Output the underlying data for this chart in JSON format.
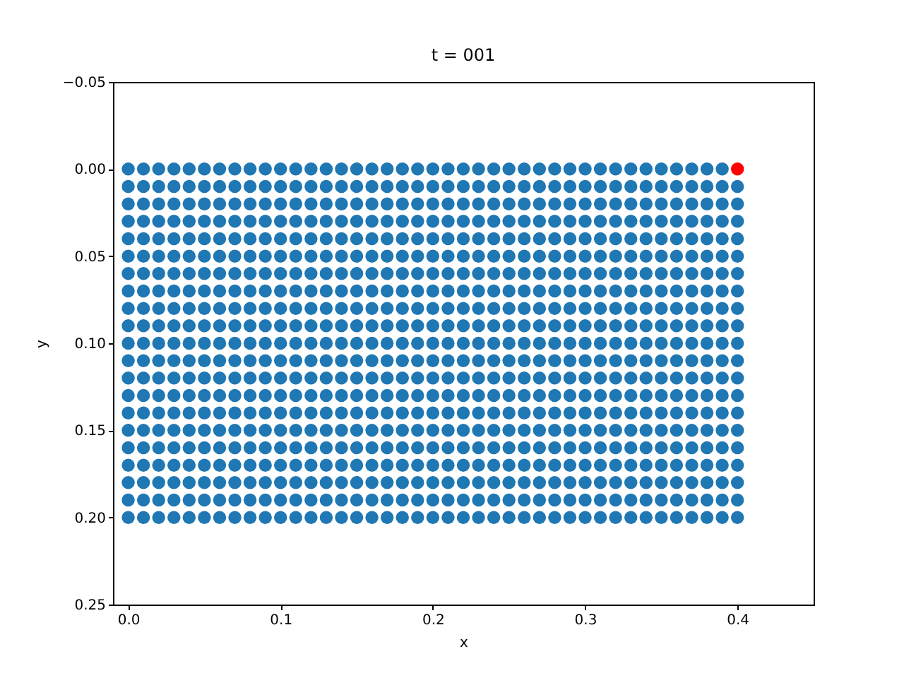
{
  "chart_data": {
    "type": "scatter",
    "title": "t = 001",
    "xlabel": "x",
    "ylabel": "y",
    "marker": "circle",
    "xlim": [
      -0.01,
      0.45
    ],
    "ylim": [
      0.25,
      -0.05
    ],
    "xticks": [
      {
        "value": 0,
        "label": "0.0"
      },
      {
        "value": 0.1,
        "label": "0.1"
      },
      {
        "value": 0.2,
        "label": "0.2"
      },
      {
        "value": 0.3,
        "label": "0.3"
      },
      {
        "value": 0.4,
        "label": "0.4"
      }
    ],
    "yticks": [
      {
        "value": -0.05,
        "label": "−0.05"
      },
      {
        "value": 0,
        "label": "0.00"
      },
      {
        "value": 0.05,
        "label": "0.05"
      },
      {
        "value": 0.1,
        "label": "0.10"
      },
      {
        "value": 0.15,
        "label": "0.15"
      },
      {
        "value": 0.2,
        "label": "0.20"
      },
      {
        "value": 0.25,
        "label": "0.25"
      }
    ],
    "series": [
      {
        "color": "#1f77b4",
        "x": [
          0,
          0.01,
          0.02,
          0.03,
          0.04,
          0.05,
          0.06,
          0.07,
          0.08,
          0.09,
          0.1,
          0.11,
          0.12,
          0.13,
          0.14,
          0.15,
          0.16,
          0.17,
          0.18,
          0.19,
          0.2,
          0.21,
          0.22,
          0.23,
          0.24,
          0.25,
          0.26,
          0.27,
          0.28,
          0.29,
          0.3,
          0.31,
          0.32,
          0.33,
          0.34,
          0.35,
          0.36,
          0.37,
          0.38,
          0.39
        ],
        "values": [
          0,
          0,
          0,
          0,
          0,
          0,
          0,
          0,
          0,
          0,
          0,
          0,
          0,
          0,
          0,
          0,
          0,
          0,
          0,
          0,
          0,
          0,
          0,
          0,
          0,
          0,
          0,
          0,
          0,
          0,
          0,
          0,
          0,
          0,
          0,
          0,
          0,
          0,
          0,
          0
        ]
      },
      {
        "color": "#1f77b4",
        "x": [
          0,
          0.01,
          0.02,
          0.03,
          0.04,
          0.05,
          0.06,
          0.07,
          0.08,
          0.09,
          0.1,
          0.11,
          0.12,
          0.13,
          0.14,
          0.15,
          0.16,
          0.17,
          0.18,
          0.19,
          0.2,
          0.21,
          0.22,
          0.23,
          0.24,
          0.25,
          0.26,
          0.27,
          0.28,
          0.29,
          0.3,
          0.31,
          0.32,
          0.33,
          0.34,
          0.35,
          0.36,
          0.37,
          0.38,
          0.39,
          0.4
        ],
        "values": [
          0.01,
          0.01,
          0.01,
          0.01,
          0.01,
          0.01,
          0.01,
          0.01,
          0.01,
          0.01,
          0.01,
          0.01,
          0.01,
          0.01,
          0.01,
          0.01,
          0.01,
          0.01,
          0.01,
          0.01,
          0.01,
          0.01,
          0.01,
          0.01,
          0.01,
          0.01,
          0.01,
          0.01,
          0.01,
          0.01,
          0.01,
          0.01,
          0.01,
          0.01,
          0.01,
          0.01,
          0.01,
          0.01,
          0.01,
          0.01,
          0.01
        ]
      },
      {
        "color": "#1f77b4",
        "x": [
          0,
          0.01,
          0.02,
          0.03,
          0.04,
          0.05,
          0.06,
          0.07,
          0.08,
          0.09,
          0.1,
          0.11,
          0.12,
          0.13,
          0.14,
          0.15,
          0.16,
          0.17,
          0.18,
          0.19,
          0.2,
          0.21,
          0.22,
          0.23,
          0.24,
          0.25,
          0.26,
          0.27,
          0.28,
          0.29,
          0.3,
          0.31,
          0.32,
          0.33,
          0.34,
          0.35,
          0.36,
          0.37,
          0.38,
          0.39,
          0.4
        ],
        "values": [
          0.02,
          0.02,
          0.02,
          0.02,
          0.02,
          0.02,
          0.02,
          0.02,
          0.02,
          0.02,
          0.02,
          0.02,
          0.02,
          0.02,
          0.02,
          0.02,
          0.02,
          0.02,
          0.02,
          0.02,
          0.02,
          0.02,
          0.02,
          0.02,
          0.02,
          0.02,
          0.02,
          0.02,
          0.02,
          0.02,
          0.02,
          0.02,
          0.02,
          0.02,
          0.02,
          0.02,
          0.02,
          0.02,
          0.02,
          0.02,
          0.02
        ]
      },
      {
        "color": "#1f77b4",
        "x": [
          0,
          0.01,
          0.02,
          0.03,
          0.04,
          0.05,
          0.06,
          0.07,
          0.08,
          0.09,
          0.1,
          0.11,
          0.12,
          0.13,
          0.14,
          0.15,
          0.16,
          0.17,
          0.18,
          0.19,
          0.2,
          0.21,
          0.22,
          0.23,
          0.24,
          0.25,
          0.26,
          0.27,
          0.28,
          0.29,
          0.3,
          0.31,
          0.32,
          0.33,
          0.34,
          0.35,
          0.36,
          0.37,
          0.38,
          0.39,
          0.4
        ],
        "values": [
          0.03,
          0.03,
          0.03,
          0.03,
          0.03,
          0.03,
          0.03,
          0.03,
          0.03,
          0.03,
          0.03,
          0.03,
          0.03,
          0.03,
          0.03,
          0.03,
          0.03,
          0.03,
          0.03,
          0.03,
          0.03,
          0.03,
          0.03,
          0.03,
          0.03,
          0.03,
          0.03,
          0.03,
          0.03,
          0.03,
          0.03,
          0.03,
          0.03,
          0.03,
          0.03,
          0.03,
          0.03,
          0.03,
          0.03,
          0.03,
          0.03
        ]
      },
      {
        "color": "#1f77b4",
        "x": [
          0,
          0.01,
          0.02,
          0.03,
          0.04,
          0.05,
          0.06,
          0.07,
          0.08,
          0.09,
          0.1,
          0.11,
          0.12,
          0.13,
          0.14,
          0.15,
          0.16,
          0.17,
          0.18,
          0.19,
          0.2,
          0.21,
          0.22,
          0.23,
          0.24,
          0.25,
          0.26,
          0.27,
          0.28,
          0.29,
          0.3,
          0.31,
          0.32,
          0.33,
          0.34,
          0.35,
          0.36,
          0.37,
          0.38,
          0.39,
          0.4
        ],
        "values": [
          0.04,
          0.04,
          0.04,
          0.04,
          0.04,
          0.04,
          0.04,
          0.04,
          0.04,
          0.04,
          0.04,
          0.04,
          0.04,
          0.04,
          0.04,
          0.04,
          0.04,
          0.04,
          0.04,
          0.04,
          0.04,
          0.04,
          0.04,
          0.04,
          0.04,
          0.04,
          0.04,
          0.04,
          0.04,
          0.04,
          0.04,
          0.04,
          0.04,
          0.04,
          0.04,
          0.04,
          0.04,
          0.04,
          0.04,
          0.04,
          0.04
        ]
      },
      {
        "color": "#1f77b4",
        "x": [
          0,
          0.01,
          0.02,
          0.03,
          0.04,
          0.05,
          0.06,
          0.07,
          0.08,
          0.09,
          0.1,
          0.11,
          0.12,
          0.13,
          0.14,
          0.15,
          0.16,
          0.17,
          0.18,
          0.19,
          0.2,
          0.21,
          0.22,
          0.23,
          0.24,
          0.25,
          0.26,
          0.27,
          0.28,
          0.29,
          0.3,
          0.31,
          0.32,
          0.33,
          0.34,
          0.35,
          0.36,
          0.37,
          0.38,
          0.39,
          0.4
        ],
        "values": [
          0.05,
          0.05,
          0.05,
          0.05,
          0.05,
          0.05,
          0.05,
          0.05,
          0.05,
          0.05,
          0.05,
          0.05,
          0.05,
          0.05,
          0.05,
          0.05,
          0.05,
          0.05,
          0.05,
          0.05,
          0.05,
          0.05,
          0.05,
          0.05,
          0.05,
          0.05,
          0.05,
          0.05,
          0.05,
          0.05,
          0.05,
          0.05,
          0.05,
          0.05,
          0.05,
          0.05,
          0.05,
          0.05,
          0.05,
          0.05,
          0.05
        ]
      },
      {
        "color": "#1f77b4",
        "x": [
          0,
          0.01,
          0.02,
          0.03,
          0.04,
          0.05,
          0.06,
          0.07,
          0.08,
          0.09,
          0.1,
          0.11,
          0.12,
          0.13,
          0.14,
          0.15,
          0.16,
          0.17,
          0.18,
          0.19,
          0.2,
          0.21,
          0.22,
          0.23,
          0.24,
          0.25,
          0.26,
          0.27,
          0.28,
          0.29,
          0.3,
          0.31,
          0.32,
          0.33,
          0.34,
          0.35,
          0.36,
          0.37,
          0.38,
          0.39,
          0.4
        ],
        "values": [
          0.06,
          0.06,
          0.06,
          0.06,
          0.06,
          0.06,
          0.06,
          0.06,
          0.06,
          0.06,
          0.06,
          0.06,
          0.06,
          0.06,
          0.06,
          0.06,
          0.06,
          0.06,
          0.06,
          0.06,
          0.06,
          0.06,
          0.06,
          0.06,
          0.06,
          0.06,
          0.06,
          0.06,
          0.06,
          0.06,
          0.06,
          0.06,
          0.06,
          0.06,
          0.06,
          0.06,
          0.06,
          0.06,
          0.06,
          0.06,
          0.06
        ]
      },
      {
        "color": "#1f77b4",
        "x": [
          0,
          0.01,
          0.02,
          0.03,
          0.04,
          0.05,
          0.06,
          0.07,
          0.08,
          0.09,
          0.1,
          0.11,
          0.12,
          0.13,
          0.14,
          0.15,
          0.16,
          0.17,
          0.18,
          0.19,
          0.2,
          0.21,
          0.22,
          0.23,
          0.24,
          0.25,
          0.26,
          0.27,
          0.28,
          0.29,
          0.3,
          0.31,
          0.32,
          0.33,
          0.34,
          0.35,
          0.36,
          0.37,
          0.38,
          0.39,
          0.4
        ],
        "values": [
          0.07,
          0.07,
          0.07,
          0.07,
          0.07,
          0.07,
          0.07,
          0.07,
          0.07,
          0.07,
          0.07,
          0.07,
          0.07,
          0.07,
          0.07,
          0.07,
          0.07,
          0.07,
          0.07,
          0.07,
          0.07,
          0.07,
          0.07,
          0.07,
          0.07,
          0.07,
          0.07,
          0.07,
          0.07,
          0.07,
          0.07,
          0.07,
          0.07,
          0.07,
          0.07,
          0.07,
          0.07,
          0.07,
          0.07,
          0.07,
          0.07
        ]
      },
      {
        "color": "#1f77b4",
        "x": [
          0,
          0.01,
          0.02,
          0.03,
          0.04,
          0.05,
          0.06,
          0.07,
          0.08,
          0.09,
          0.1,
          0.11,
          0.12,
          0.13,
          0.14,
          0.15,
          0.16,
          0.17,
          0.18,
          0.19,
          0.2,
          0.21,
          0.22,
          0.23,
          0.24,
          0.25,
          0.26,
          0.27,
          0.28,
          0.29,
          0.3,
          0.31,
          0.32,
          0.33,
          0.34,
          0.35,
          0.36,
          0.37,
          0.38,
          0.39,
          0.4
        ],
        "values": [
          0.08,
          0.08,
          0.08,
          0.08,
          0.08,
          0.08,
          0.08,
          0.08,
          0.08,
          0.08,
          0.08,
          0.08,
          0.08,
          0.08,
          0.08,
          0.08,
          0.08,
          0.08,
          0.08,
          0.08,
          0.08,
          0.08,
          0.08,
          0.08,
          0.08,
          0.08,
          0.08,
          0.08,
          0.08,
          0.08,
          0.08,
          0.08,
          0.08,
          0.08,
          0.08,
          0.08,
          0.08,
          0.08,
          0.08,
          0.08,
          0.08
        ]
      },
      {
        "color": "#1f77b4",
        "x": [
          0,
          0.01,
          0.02,
          0.03,
          0.04,
          0.05,
          0.06,
          0.07,
          0.08,
          0.09,
          0.1,
          0.11,
          0.12,
          0.13,
          0.14,
          0.15,
          0.16,
          0.17,
          0.18,
          0.19,
          0.2,
          0.21,
          0.22,
          0.23,
          0.24,
          0.25,
          0.26,
          0.27,
          0.28,
          0.29,
          0.3,
          0.31,
          0.32,
          0.33,
          0.34,
          0.35,
          0.36,
          0.37,
          0.38,
          0.39,
          0.4
        ],
        "values": [
          0.09,
          0.09,
          0.09,
          0.09,
          0.09,
          0.09,
          0.09,
          0.09,
          0.09,
          0.09,
          0.09,
          0.09,
          0.09,
          0.09,
          0.09,
          0.09,
          0.09,
          0.09,
          0.09,
          0.09,
          0.09,
          0.09,
          0.09,
          0.09,
          0.09,
          0.09,
          0.09,
          0.09,
          0.09,
          0.09,
          0.09,
          0.09,
          0.09,
          0.09,
          0.09,
          0.09,
          0.09,
          0.09,
          0.09,
          0.09,
          0.09
        ]
      },
      {
        "color": "#1f77b4",
        "x": [
          0,
          0.01,
          0.02,
          0.03,
          0.04,
          0.05,
          0.06,
          0.07,
          0.08,
          0.09,
          0.1,
          0.11,
          0.12,
          0.13,
          0.14,
          0.15,
          0.16,
          0.17,
          0.18,
          0.19,
          0.2,
          0.21,
          0.22,
          0.23,
          0.24,
          0.25,
          0.26,
          0.27,
          0.28,
          0.29,
          0.3,
          0.31,
          0.32,
          0.33,
          0.34,
          0.35,
          0.36,
          0.37,
          0.38,
          0.39,
          0.4
        ],
        "values": [
          0.1,
          0.1,
          0.1,
          0.1,
          0.1,
          0.1,
          0.1,
          0.1,
          0.1,
          0.1,
          0.1,
          0.1,
          0.1,
          0.1,
          0.1,
          0.1,
          0.1,
          0.1,
          0.1,
          0.1,
          0.1,
          0.1,
          0.1,
          0.1,
          0.1,
          0.1,
          0.1,
          0.1,
          0.1,
          0.1,
          0.1,
          0.1,
          0.1,
          0.1,
          0.1,
          0.1,
          0.1,
          0.1,
          0.1,
          0.1,
          0.1
        ]
      },
      {
        "color": "#1f77b4",
        "x": [
          0,
          0.01,
          0.02,
          0.03,
          0.04,
          0.05,
          0.06,
          0.07,
          0.08,
          0.09,
          0.1,
          0.11,
          0.12,
          0.13,
          0.14,
          0.15,
          0.16,
          0.17,
          0.18,
          0.19,
          0.2,
          0.21,
          0.22,
          0.23,
          0.24,
          0.25,
          0.26,
          0.27,
          0.28,
          0.29,
          0.3,
          0.31,
          0.32,
          0.33,
          0.34,
          0.35,
          0.36,
          0.37,
          0.38,
          0.39,
          0.4
        ],
        "values": [
          0.11,
          0.11,
          0.11,
          0.11,
          0.11,
          0.11,
          0.11,
          0.11,
          0.11,
          0.11,
          0.11,
          0.11,
          0.11,
          0.11,
          0.11,
          0.11,
          0.11,
          0.11,
          0.11,
          0.11,
          0.11,
          0.11,
          0.11,
          0.11,
          0.11,
          0.11,
          0.11,
          0.11,
          0.11,
          0.11,
          0.11,
          0.11,
          0.11,
          0.11,
          0.11,
          0.11,
          0.11,
          0.11,
          0.11,
          0.11,
          0.11
        ]
      },
      {
        "color": "#1f77b4",
        "x": [
          0,
          0.01,
          0.02,
          0.03,
          0.04,
          0.05,
          0.06,
          0.07,
          0.08,
          0.09,
          0.1,
          0.11,
          0.12,
          0.13,
          0.14,
          0.15,
          0.16,
          0.17,
          0.18,
          0.19,
          0.2,
          0.21,
          0.22,
          0.23,
          0.24,
          0.25,
          0.26,
          0.27,
          0.28,
          0.29,
          0.3,
          0.31,
          0.32,
          0.33,
          0.34,
          0.35,
          0.36,
          0.37,
          0.38,
          0.39,
          0.4
        ],
        "values": [
          0.12,
          0.12,
          0.12,
          0.12,
          0.12,
          0.12,
          0.12,
          0.12,
          0.12,
          0.12,
          0.12,
          0.12,
          0.12,
          0.12,
          0.12,
          0.12,
          0.12,
          0.12,
          0.12,
          0.12,
          0.12,
          0.12,
          0.12,
          0.12,
          0.12,
          0.12,
          0.12,
          0.12,
          0.12,
          0.12,
          0.12,
          0.12,
          0.12,
          0.12,
          0.12,
          0.12,
          0.12,
          0.12,
          0.12,
          0.12,
          0.12
        ]
      },
      {
        "color": "#1f77b4",
        "x": [
          0,
          0.01,
          0.02,
          0.03,
          0.04,
          0.05,
          0.06,
          0.07,
          0.08,
          0.09,
          0.1,
          0.11,
          0.12,
          0.13,
          0.14,
          0.15,
          0.16,
          0.17,
          0.18,
          0.19,
          0.2,
          0.21,
          0.22,
          0.23,
          0.24,
          0.25,
          0.26,
          0.27,
          0.28,
          0.29,
          0.3,
          0.31,
          0.32,
          0.33,
          0.34,
          0.35,
          0.36,
          0.37,
          0.38,
          0.39,
          0.4
        ],
        "values": [
          0.13,
          0.13,
          0.13,
          0.13,
          0.13,
          0.13,
          0.13,
          0.13,
          0.13,
          0.13,
          0.13,
          0.13,
          0.13,
          0.13,
          0.13,
          0.13,
          0.13,
          0.13,
          0.13,
          0.13,
          0.13,
          0.13,
          0.13,
          0.13,
          0.13,
          0.13,
          0.13,
          0.13,
          0.13,
          0.13,
          0.13,
          0.13,
          0.13,
          0.13,
          0.13,
          0.13,
          0.13,
          0.13,
          0.13,
          0.13,
          0.13
        ]
      },
      {
        "color": "#1f77b4",
        "x": [
          0,
          0.01,
          0.02,
          0.03,
          0.04,
          0.05,
          0.06,
          0.07,
          0.08,
          0.09,
          0.1,
          0.11,
          0.12,
          0.13,
          0.14,
          0.15,
          0.16,
          0.17,
          0.18,
          0.19,
          0.2,
          0.21,
          0.22,
          0.23,
          0.24,
          0.25,
          0.26,
          0.27,
          0.28,
          0.29,
          0.3,
          0.31,
          0.32,
          0.33,
          0.34,
          0.35,
          0.36,
          0.37,
          0.38,
          0.39,
          0.4
        ],
        "values": [
          0.14,
          0.14,
          0.14,
          0.14,
          0.14,
          0.14,
          0.14,
          0.14,
          0.14,
          0.14,
          0.14,
          0.14,
          0.14,
          0.14,
          0.14,
          0.14,
          0.14,
          0.14,
          0.14,
          0.14,
          0.14,
          0.14,
          0.14,
          0.14,
          0.14,
          0.14,
          0.14,
          0.14,
          0.14,
          0.14,
          0.14,
          0.14,
          0.14,
          0.14,
          0.14,
          0.14,
          0.14,
          0.14,
          0.14,
          0.14,
          0.14
        ]
      },
      {
        "color": "#1f77b4",
        "x": [
          0,
          0.01,
          0.02,
          0.03,
          0.04,
          0.05,
          0.06,
          0.07,
          0.08,
          0.09,
          0.1,
          0.11,
          0.12,
          0.13,
          0.14,
          0.15,
          0.16,
          0.17,
          0.18,
          0.19,
          0.2,
          0.21,
          0.22,
          0.23,
          0.24,
          0.25,
          0.26,
          0.27,
          0.28,
          0.29,
          0.3,
          0.31,
          0.32,
          0.33,
          0.34,
          0.35,
          0.36,
          0.37,
          0.38,
          0.39,
          0.4
        ],
        "values": [
          0.15,
          0.15,
          0.15,
          0.15,
          0.15,
          0.15,
          0.15,
          0.15,
          0.15,
          0.15,
          0.15,
          0.15,
          0.15,
          0.15,
          0.15,
          0.15,
          0.15,
          0.15,
          0.15,
          0.15,
          0.15,
          0.15,
          0.15,
          0.15,
          0.15,
          0.15,
          0.15,
          0.15,
          0.15,
          0.15,
          0.15,
          0.15,
          0.15,
          0.15,
          0.15,
          0.15,
          0.15,
          0.15,
          0.15,
          0.15,
          0.15
        ]
      },
      {
        "color": "#1f77b4",
        "x": [
          0,
          0.01,
          0.02,
          0.03,
          0.04,
          0.05,
          0.06,
          0.07,
          0.08,
          0.09,
          0.1,
          0.11,
          0.12,
          0.13,
          0.14,
          0.15,
          0.16,
          0.17,
          0.18,
          0.19,
          0.2,
          0.21,
          0.22,
          0.23,
          0.24,
          0.25,
          0.26,
          0.27,
          0.28,
          0.29,
          0.3,
          0.31,
          0.32,
          0.33,
          0.34,
          0.35,
          0.36,
          0.37,
          0.38,
          0.39,
          0.4
        ],
        "values": [
          0.16,
          0.16,
          0.16,
          0.16,
          0.16,
          0.16,
          0.16,
          0.16,
          0.16,
          0.16,
          0.16,
          0.16,
          0.16,
          0.16,
          0.16,
          0.16,
          0.16,
          0.16,
          0.16,
          0.16,
          0.16,
          0.16,
          0.16,
          0.16,
          0.16,
          0.16,
          0.16,
          0.16,
          0.16,
          0.16,
          0.16,
          0.16,
          0.16,
          0.16,
          0.16,
          0.16,
          0.16,
          0.16,
          0.16,
          0.16,
          0.16
        ]
      },
      {
        "color": "#1f77b4",
        "x": [
          0,
          0.01,
          0.02,
          0.03,
          0.04,
          0.05,
          0.06,
          0.07,
          0.08,
          0.09,
          0.1,
          0.11,
          0.12,
          0.13,
          0.14,
          0.15,
          0.16,
          0.17,
          0.18,
          0.19,
          0.2,
          0.21,
          0.22,
          0.23,
          0.24,
          0.25,
          0.26,
          0.27,
          0.28,
          0.29,
          0.3,
          0.31,
          0.32,
          0.33,
          0.34,
          0.35,
          0.36,
          0.37,
          0.38,
          0.39,
          0.4
        ],
        "values": [
          0.17,
          0.17,
          0.17,
          0.17,
          0.17,
          0.17,
          0.17,
          0.17,
          0.17,
          0.17,
          0.17,
          0.17,
          0.17,
          0.17,
          0.17,
          0.17,
          0.17,
          0.17,
          0.17,
          0.17,
          0.17,
          0.17,
          0.17,
          0.17,
          0.17,
          0.17,
          0.17,
          0.17,
          0.17,
          0.17,
          0.17,
          0.17,
          0.17,
          0.17,
          0.17,
          0.17,
          0.17,
          0.17,
          0.17,
          0.17,
          0.17
        ]
      },
      {
        "color": "#1f77b4",
        "x": [
          0,
          0.01,
          0.02,
          0.03,
          0.04,
          0.05,
          0.06,
          0.07,
          0.08,
          0.09,
          0.1,
          0.11,
          0.12,
          0.13,
          0.14,
          0.15,
          0.16,
          0.17,
          0.18,
          0.19,
          0.2,
          0.21,
          0.22,
          0.23,
          0.24,
          0.25,
          0.26,
          0.27,
          0.28,
          0.29,
          0.3,
          0.31,
          0.32,
          0.33,
          0.34,
          0.35,
          0.36,
          0.37,
          0.38,
          0.39,
          0.4
        ],
        "values": [
          0.18,
          0.18,
          0.18,
          0.18,
          0.18,
          0.18,
          0.18,
          0.18,
          0.18,
          0.18,
          0.18,
          0.18,
          0.18,
          0.18,
          0.18,
          0.18,
          0.18,
          0.18,
          0.18,
          0.18,
          0.18,
          0.18,
          0.18,
          0.18,
          0.18,
          0.18,
          0.18,
          0.18,
          0.18,
          0.18,
          0.18,
          0.18,
          0.18,
          0.18,
          0.18,
          0.18,
          0.18,
          0.18,
          0.18,
          0.18,
          0.18
        ]
      },
      {
        "color": "#1f77b4",
        "x": [
          0,
          0.01,
          0.02,
          0.03,
          0.04,
          0.05,
          0.06,
          0.07,
          0.08,
          0.09,
          0.1,
          0.11,
          0.12,
          0.13,
          0.14,
          0.15,
          0.16,
          0.17,
          0.18,
          0.19,
          0.2,
          0.21,
          0.22,
          0.23,
          0.24,
          0.25,
          0.26,
          0.27,
          0.28,
          0.29,
          0.3,
          0.31,
          0.32,
          0.33,
          0.34,
          0.35,
          0.36,
          0.37,
          0.38,
          0.39,
          0.4
        ],
        "values": [
          0.19,
          0.19,
          0.19,
          0.19,
          0.19,
          0.19,
          0.19,
          0.19,
          0.19,
          0.19,
          0.19,
          0.19,
          0.19,
          0.19,
          0.19,
          0.19,
          0.19,
          0.19,
          0.19,
          0.19,
          0.19,
          0.19,
          0.19,
          0.19,
          0.19,
          0.19,
          0.19,
          0.19,
          0.19,
          0.19,
          0.19,
          0.19,
          0.19,
          0.19,
          0.19,
          0.19,
          0.19,
          0.19,
          0.19,
          0.19,
          0.19
        ]
      },
      {
        "color": "#1f77b4",
        "x": [
          0,
          0.01,
          0.02,
          0.03,
          0.04,
          0.05,
          0.06,
          0.07,
          0.08,
          0.09,
          0.1,
          0.11,
          0.12,
          0.13,
          0.14,
          0.15,
          0.16,
          0.17,
          0.18,
          0.19,
          0.2,
          0.21,
          0.22,
          0.23,
          0.24,
          0.25,
          0.26,
          0.27,
          0.28,
          0.29,
          0.3,
          0.31,
          0.32,
          0.33,
          0.34,
          0.35,
          0.36,
          0.37,
          0.38,
          0.39,
          0.4
        ],
        "values": [
          0.2,
          0.2,
          0.2,
          0.2,
          0.2,
          0.2,
          0.2,
          0.2,
          0.2,
          0.2,
          0.2,
          0.2,
          0.2,
          0.2,
          0.2,
          0.2,
          0.2,
          0.2,
          0.2,
          0.2,
          0.2,
          0.2,
          0.2,
          0.2,
          0.2,
          0.2,
          0.2,
          0.2,
          0.2,
          0.2,
          0.2,
          0.2,
          0.2,
          0.2,
          0.2,
          0.2,
          0.2,
          0.2,
          0.2,
          0.2,
          0.2
        ]
      },
      {
        "color": "#ff0000",
        "x": [
          0.4
        ],
        "values": [
          0
        ]
      }
    ]
  }
}
